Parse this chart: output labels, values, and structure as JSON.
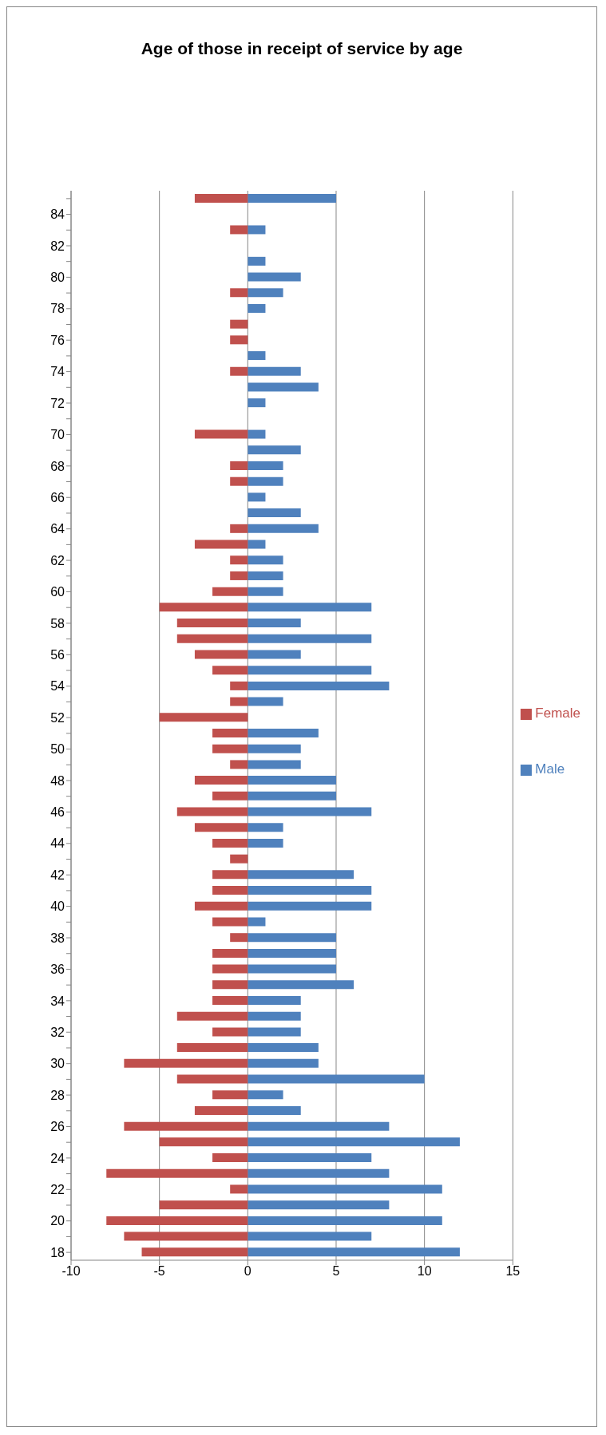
{
  "chart_data": {
    "type": "bar",
    "title": "Age of those in receipt of service by age",
    "orientation": "horizontal",
    "stacked": true,
    "categories": [
      null,
      "84",
      null,
      "82",
      null,
      "80",
      null,
      "78",
      null,
      "76",
      null,
      "74",
      null,
      "72",
      null,
      "70",
      null,
      "68",
      null,
      "66",
      null,
      "64",
      null,
      "62",
      null,
      "60",
      null,
      "58",
      null,
      "56",
      null,
      "54",
      null,
      "52",
      null,
      "50",
      null,
      "48",
      null,
      "46",
      null,
      "44",
      null,
      "42",
      null,
      "40",
      null,
      "38",
      null,
      "36",
      null,
      "34",
      null,
      "32",
      null,
      "30",
      null,
      "28",
      null,
      "26",
      null,
      "24",
      null,
      "22",
      null,
      "20",
      null,
      "18"
    ],
    "series": [
      {
        "name": "Male",
        "color": "#4f81bd",
        "values": [
          5,
          0,
          1,
          0,
          1,
          3,
          2,
          1,
          0,
          0,
          1,
          3,
          4,
          1,
          0,
          1,
          3,
          2,
          2,
          1,
          3,
          4,
          1,
          2,
          2,
          2,
          7,
          3,
          7,
          3,
          7,
          8,
          2,
          0,
          4,
          3,
          3,
          5,
          5,
          7,
          2,
          2,
          0,
          6,
          7,
          7,
          1,
          5,
          5,
          5,
          6,
          3,
          3,
          3,
          4,
          4,
          10,
          2,
          3,
          8,
          12,
          7,
          8,
          11,
          8,
          11,
          7,
          12
        ]
      },
      {
        "name": "Female",
        "color": "#c0504d",
        "values": [
          -3,
          0,
          -1,
          0,
          0,
          0,
          -1,
          0,
          -1,
          -1,
          0,
          -1,
          0,
          0,
          0,
          -3,
          0,
          -1,
          -1,
          0,
          0,
          -1,
          -3,
          -1,
          -1,
          -2,
          -5,
          -4,
          -4,
          -3,
          -2,
          -1,
          -1,
          -5,
          -2,
          -2,
          -1,
          -3,
          -2,
          -4,
          -3,
          -2,
          -1,
          -2,
          -2,
          -3,
          -2,
          -1,
          -2,
          -2,
          -2,
          -2,
          -4,
          -2,
          -4,
          -7,
          -4,
          -2,
          -3,
          -7,
          -5,
          -2,
          -8,
          -1,
          -5,
          -8,
          -7,
          -6
        ]
      }
    ],
    "xlim": [
      -10,
      15
    ],
    "xticks": [
      -10,
      -5,
      0,
      5,
      10,
      15
    ],
    "grid": "x",
    "legend": "right"
  }
}
